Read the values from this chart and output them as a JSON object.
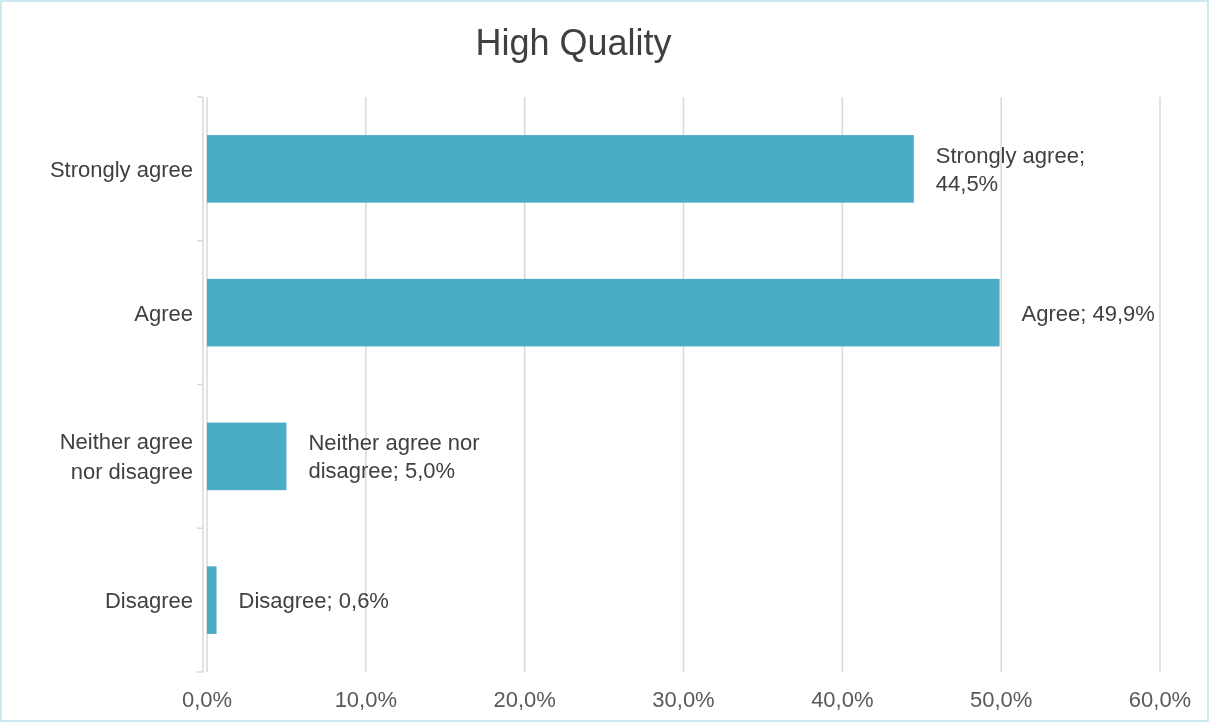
{
  "chart_data": {
    "type": "bar",
    "orientation": "horizontal",
    "title": "High Quality",
    "categories": [
      "Strongly agree",
      "Agree",
      "Neither agree nor disagree",
      "Disagree"
    ],
    "values": [
      44.5,
      49.9,
      5.0,
      0.6
    ],
    "value_labels": [
      "Strongly agree; 44,5%",
      "Agree; 49,9%",
      "Neither agree nor disagree; 5,0%",
      "Disagree; 0,6%"
    ],
    "color": "#4bacc6",
    "xlim": [
      0,
      60
    ],
    "xticks": [
      {
        "value": 0,
        "label": "0,0%"
      },
      {
        "value": 10,
        "label": "10,0%"
      },
      {
        "value": 20,
        "label": "20,0%"
      },
      {
        "value": 30,
        "label": "30,0%"
      },
      {
        "value": 40,
        "label": "40,0%"
      },
      {
        "value": 50,
        "label": "50,0%"
      },
      {
        "value": 60,
        "label": "60,0%"
      }
    ],
    "grid": "x"
  }
}
